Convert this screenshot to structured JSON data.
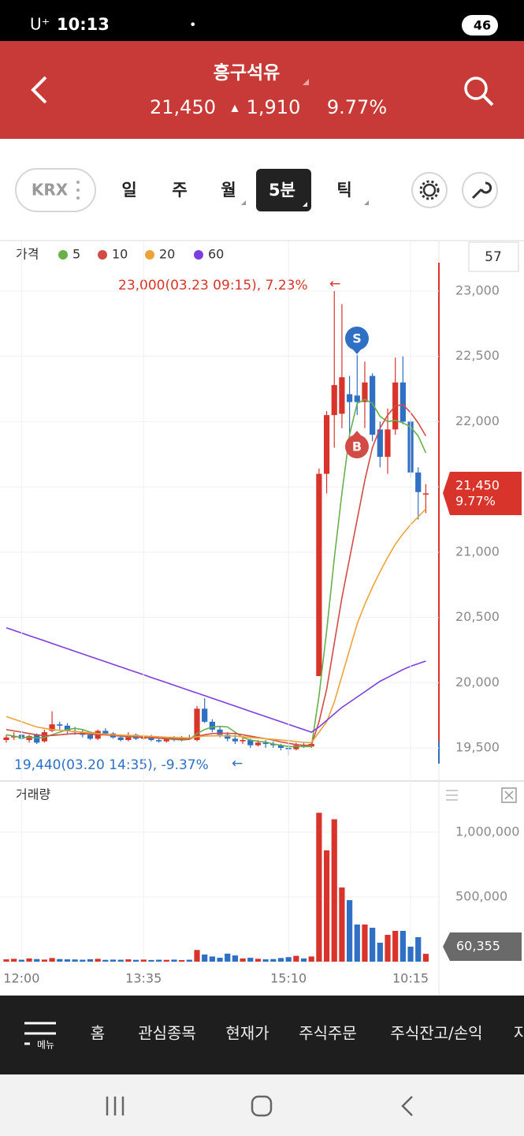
{
  "status_bar": {
    "carrier": "U⁺",
    "time": "10:13",
    "battery": "46"
  },
  "header": {
    "title": "흥구석유",
    "price": "21,450",
    "change_arrow": "▲",
    "change": "1,910",
    "change_rate": "9.77%"
  },
  "tabs": {
    "exchange": "KRX",
    "periods": [
      "일",
      "주",
      "월",
      "5분",
      "틱"
    ],
    "selected_index": 3
  },
  "chart_data": [
    {
      "type": "candlestick",
      "legend_title": "가격",
      "period_box": "57",
      "up_color": "#d8342c",
      "down_color": "#2f6fc4",
      "grid": true,
      "open": [
        19560,
        19580,
        19600,
        19560,
        19600,
        19550,
        19630,
        19680,
        19670,
        19630,
        19620,
        19600,
        19570,
        19630,
        19610,
        19580,
        19560,
        19600,
        19570,
        19590,
        19560,
        19550,
        19570,
        19560,
        19580,
        19560,
        19800,
        19700,
        19640,
        19600,
        19570,
        19550,
        19560,
        19520,
        19540,
        19530,
        19520,
        19500,
        19490,
        19520,
        19510,
        20050,
        21600,
        22050,
        22060,
        22210,
        22200,
        22150,
        22350,
        21940,
        21730,
        21940,
        22300,
        22000,
        21610,
        21450
      ],
      "high": [
        19600,
        19620,
        19610,
        19600,
        19610,
        19640,
        19780,
        19700,
        19690,
        19660,
        19640,
        19620,
        19640,
        19650,
        19620,
        19600,
        19620,
        19610,
        19600,
        19600,
        19580,
        19580,
        19590,
        19590,
        19600,
        19820,
        19880,
        19720,
        19660,
        19620,
        19600,
        19580,
        19570,
        19560,
        19560,
        19550,
        19530,
        19530,
        19540,
        19540,
        19540,
        21640,
        22080,
        23000,
        22900,
        22350,
        22510,
        22460,
        22370,
        22000,
        22100,
        22490,
        22500,
        22020,
        21650,
        21520
      ],
      "low": [
        19540,
        19560,
        19560,
        19540,
        19530,
        19540,
        19620,
        19640,
        19610,
        19600,
        19580,
        19560,
        19560,
        19600,
        19570,
        19550,
        19550,
        19560,
        19560,
        19550,
        19540,
        19540,
        19550,
        19550,
        19560,
        19550,
        19690,
        19620,
        19580,
        19550,
        19530,
        19530,
        19500,
        19510,
        19500,
        19500,
        19480,
        19440,
        19480,
        19500,
        19500,
        20050,
        21450,
        21800,
        21950,
        21850,
        22050,
        21950,
        21850,
        21650,
        21600,
        21900,
        21980,
        21570,
        21250,
        21300
      ],
      "close": [
        19580,
        19590,
        19570,
        19590,
        19540,
        19620,
        19680,
        19670,
        19630,
        19620,
        19600,
        19570,
        19630,
        19610,
        19580,
        19560,
        19600,
        19570,
        19590,
        19560,
        19550,
        19570,
        19560,
        19580,
        19570,
        19800,
        19700,
        19640,
        19600,
        19570,
        19550,
        19560,
        19520,
        19540,
        19530,
        19520,
        19500,
        19490,
        19520,
        19510,
        19530,
        21600,
        22050,
        22280,
        22340,
        22150,
        22150,
        22300,
        21900,
        21730,
        21940,
        22300,
        22000,
        21610,
        21460,
        21450
      ],
      "series": [
        {
          "name": "5",
          "color": "#67b04a",
          "values": [
            19600,
            19590,
            19580,
            19580,
            19575,
            19580,
            19600,
            19620,
            19640,
            19650,
            19640,
            19620,
            19610,
            19600,
            19600,
            19590,
            19585,
            19585,
            19580,
            19580,
            19575,
            19570,
            19565,
            19560,
            19565,
            19610,
            19640,
            19660,
            19665,
            19660,
            19620,
            19580,
            19560,
            19550,
            19545,
            19530,
            19520,
            19510,
            19510,
            19510,
            19510,
            19900,
            20400,
            20950,
            21450,
            21900,
            22140,
            22170,
            22140,
            22040,
            22000,
            22010,
            21990,
            21960,
            21890,
            21760
          ]
        },
        {
          "name": "10",
          "color": "#d24b45",
          "values": [
            19640,
            19630,
            19620,
            19610,
            19600,
            19595,
            19595,
            19600,
            19605,
            19610,
            19610,
            19605,
            19600,
            19600,
            19595,
            19590,
            19590,
            19585,
            19580,
            19578,
            19575,
            19572,
            19570,
            19568,
            19567,
            19590,
            19600,
            19610,
            19612,
            19612,
            19610,
            19600,
            19590,
            19580,
            19570,
            19560,
            19545,
            19535,
            19525,
            19520,
            19520,
            19700,
            19950,
            20300,
            20650,
            20950,
            21250,
            21550,
            21800,
            21950,
            22050,
            22120,
            22130,
            22070,
            21990,
            21890
          ]
        },
        {
          "name": "20",
          "color": "#eea33a",
          "values": [
            19740,
            19720,
            19700,
            19680,
            19660,
            19650,
            19640,
            19635,
            19630,
            19625,
            19620,
            19615,
            19610,
            19605,
            19600,
            19598,
            19595,
            19593,
            19590,
            19588,
            19585,
            19582,
            19580,
            19578,
            19576,
            19585,
            19590,
            19592,
            19593,
            19592,
            19590,
            19585,
            19580,
            19575,
            19570,
            19565,
            19560,
            19555,
            19548,
            19542,
            19540,
            19620,
            19700,
            19850,
            20050,
            20250,
            20450,
            20600,
            20730,
            20850,
            20960,
            21060,
            21140,
            21210,
            21270,
            21330
          ]
        },
        {
          "name": "60",
          "color": "#7b3fe0",
          "values": [
            20420,
            20400,
            20380,
            20360,
            20340,
            20320,
            20300,
            20280,
            20260,
            20240,
            20220,
            20200,
            20180,
            20160,
            20140,
            20120,
            20100,
            20080,
            20060,
            20040,
            20020,
            20000,
            19980,
            19960,
            19940,
            19920,
            19900,
            19880,
            19860,
            19840,
            19820,
            19800,
            19780,
            19760,
            19740,
            19720,
            19700,
            19680,
            19660,
            19640,
            19620,
            19660,
            19710,
            19760,
            19810,
            19850,
            19890,
            19930,
            19970,
            20010,
            20040,
            20070,
            20100,
            20125,
            20145,
            20165
          ]
        }
      ],
      "ylim": [
        19246,
        23387
      ],
      "yticks": [
        {
          "value": 19500,
          "label": "19,500"
        },
        {
          "value": 20000,
          "label": "20,000"
        },
        {
          "value": 20500,
          "label": "20,500"
        },
        {
          "value": 21000,
          "label": "21,000"
        },
        {
          "value": 21500,
          "label": "21,500"
        },
        {
          "value": 22000,
          "label": "22,000"
        },
        {
          "value": 22500,
          "label": "22,500"
        },
        {
          "value": 23000,
          "label": "23,000"
        }
      ],
      "annotations": [
        {
          "text": "23,000(03.23 09:15), 7.23%",
          "arrow": "←"
        },
        {
          "text": "19,440(03.20 14:35), -9.37%",
          "arrow": "←"
        }
      ],
      "signals": [
        "S",
        "B"
      ],
      "price_tag": "21,450",
      "change_tag": "9.77%"
    },
    {
      "type": "bar",
      "title": "거래량",
      "grid": true,
      "categories": [
        null,
        null,
        "12:00",
        null,
        null,
        null,
        null,
        null,
        null,
        null,
        null,
        null,
        null,
        null,
        null,
        null,
        null,
        null,
        "13:35",
        null,
        null,
        null,
        null,
        null,
        null,
        null,
        null,
        null,
        null,
        null,
        null,
        null,
        null,
        null,
        null,
        null,
        null,
        "15:10",
        null,
        null,
        null,
        null,
        null,
        null,
        null,
        null,
        null,
        null,
        null,
        null,
        null,
        null,
        null,
        "10:15",
        null,
        null
      ],
      "values": [
        18000,
        22000,
        15000,
        25000,
        20000,
        16000,
        28000,
        20000,
        18000,
        17000,
        15000,
        19000,
        22000,
        14000,
        16000,
        15000,
        18000,
        14000,
        16000,
        13000,
        15000,
        14000,
        16000,
        12000,
        15000,
        90000,
        55000,
        40000,
        30000,
        62000,
        48000,
        25000,
        30000,
        22000,
        18000,
        20000,
        28000,
        35000,
        45000,
        25000,
        40000,
        1150000,
        860000,
        1100000,
        573000,
        475000,
        287000,
        287000,
        262000,
        146000,
        207000,
        238000,
        238000,
        116000,
        189000,
        60355
      ],
      "value_labels": [
        null,
        null,
        null,
        null,
        null,
        null,
        null,
        null,
        null,
        null,
        null,
        null,
        null,
        null,
        null,
        null,
        null,
        null,
        null,
        null,
        null,
        null,
        null,
        null,
        null,
        null,
        null,
        null,
        null,
        null,
        null,
        null,
        null,
        null,
        null,
        null,
        null,
        null,
        null,
        null,
        null,
        null,
        null,
        null,
        null,
        null,
        null,
        null,
        null,
        null,
        null,
        null,
        null,
        null,
        null,
        "60,355"
      ],
      "ylim": [
        0,
        1365000
      ],
      "yticks": [
        {
          "value": 500000,
          "label": "500,000"
        },
        {
          "value": 1000000,
          "label": "1,000,000"
        }
      ]
    }
  ],
  "bottom_nav": {
    "menu": "메뉴",
    "items": [
      "홈",
      "관심종목",
      "현재가",
      "주식주문",
      "주식잔고/손익",
      "자"
    ]
  }
}
